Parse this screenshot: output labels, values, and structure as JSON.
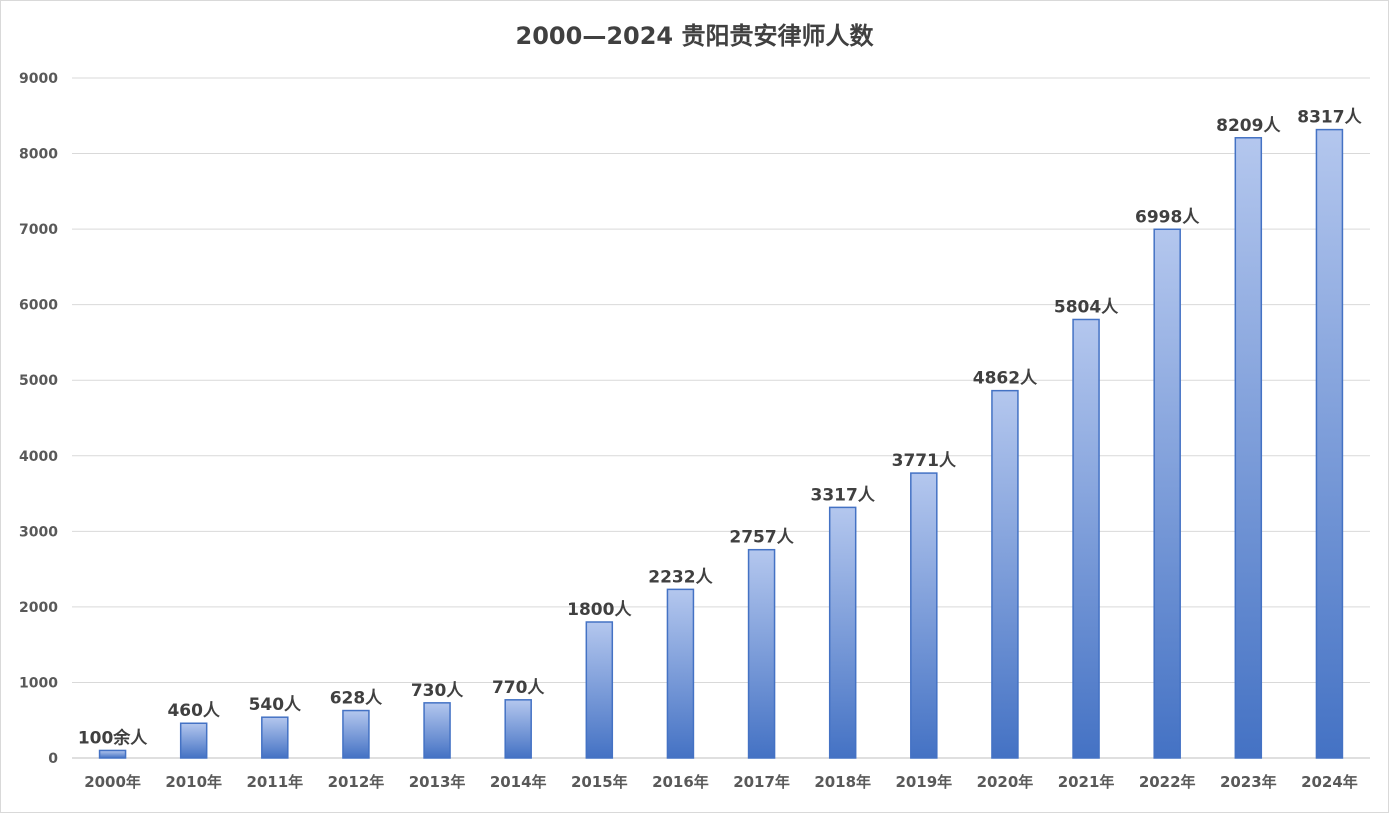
{
  "chart_data": {
    "type": "bar",
    "title": "2000—2024  贵阳贵安律师人数",
    "xlabel": "",
    "ylabel": "",
    "ylim": [
      0,
      9000
    ],
    "yticks": [
      0,
      1000,
      2000,
      3000,
      4000,
      5000,
      6000,
      7000,
      8000,
      9000
    ],
    "grid": true,
    "legend": "none",
    "categories": [
      "2000年",
      "2010年",
      "2011年",
      "2012年",
      "2013年",
      "2014年",
      "2015年",
      "2016年",
      "2017年",
      "2018年",
      "2019年",
      "2020年",
      "2021年",
      "2022年",
      "2023年",
      "2024年"
    ],
    "values": [
      100,
      460,
      540,
      628,
      730,
      770,
      1800,
      2232,
      2757,
      3317,
      3771,
      4862,
      5804,
      6998,
      8209,
      8317
    ],
    "data_labels": [
      "100余人",
      "460人",
      "540人",
      "628人",
      "730人",
      "770人",
      "1800人",
      "2232人",
      "2757人",
      "3317人",
      "3771人",
      "4862人",
      "5804人",
      "6998人",
      "8209人",
      "8317人"
    ],
    "colors": {
      "bar_top": "#b4c7ee",
      "bar_bottom": "#4472c4",
      "bar_border": "#4472c4",
      "grid": "#d9d9d9",
      "axis": "#bfbfbf"
    }
  }
}
